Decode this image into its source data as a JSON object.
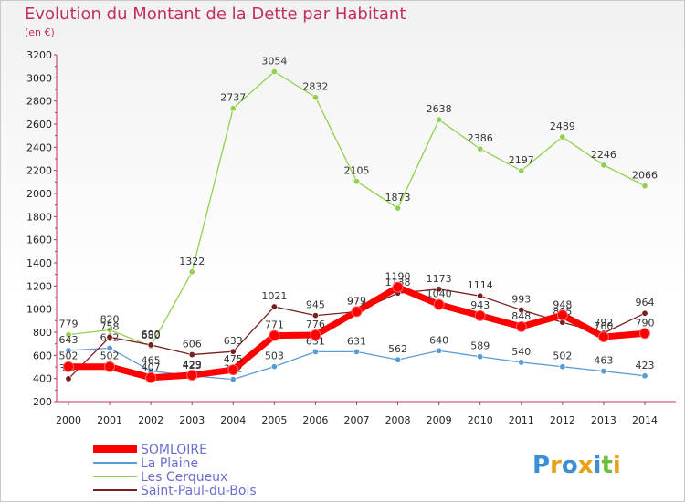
{
  "header": {
    "title": "Evolution du Montant de la Dette par Habitant",
    "subtitle": "(en €)"
  },
  "logo": {
    "text": "Proxiti"
  },
  "chart_data": {
    "type": "line",
    "title": "Evolution du Montant de la Dette par Habitant",
    "ylabel": "(en €)",
    "xlabel": "",
    "ylim": [
      200,
      3200
    ],
    "yticks": [
      200,
      400,
      600,
      800,
      1000,
      1200,
      1400,
      1600,
      1800,
      2000,
      2200,
      2400,
      2600,
      2800,
      3000,
      3200
    ],
    "categories": [
      "2000",
      "2001",
      "2002",
      "2003",
      "2004",
      "2005",
      "2006",
      "2007",
      "2008",
      "2009",
      "2010",
      "2011",
      "2012",
      "2013",
      "2014"
    ],
    "grid": false,
    "legend": "bottom-left",
    "series": [
      {
        "name": "SOMLOIRE",
        "color": "#ff0000",
        "values": [
          502,
          502,
          407,
          429,
          475,
          771,
          776,
          979,
          1190,
          1040,
          943,
          848,
          948,
          760,
          790
        ]
      },
      {
        "name": "La Plaine",
        "color": "#5b9bd5",
        "values": [
          643,
          662,
          465,
          423,
          392,
          503,
          631,
          631,
          562,
          640,
          589,
          540,
          502,
          463,
          423
        ]
      },
      {
        "name": "Les Cerqueux",
        "color": "#92d050",
        "values": [
          779,
          820,
          680,
          1322,
          2737,
          3054,
          2832,
          2105,
          1873,
          2638,
          2386,
          2197,
          2489,
          2246,
          2066
        ]
      },
      {
        "name": "Saint-Paul-du-Bois",
        "color": "#7a1f1f",
        "values": [
          398,
          758,
          690,
          606,
          633,
          1021,
          945,
          977,
          1138,
          1173,
          1114,
          993,
          885,
          792,
          964
        ]
      }
    ]
  }
}
